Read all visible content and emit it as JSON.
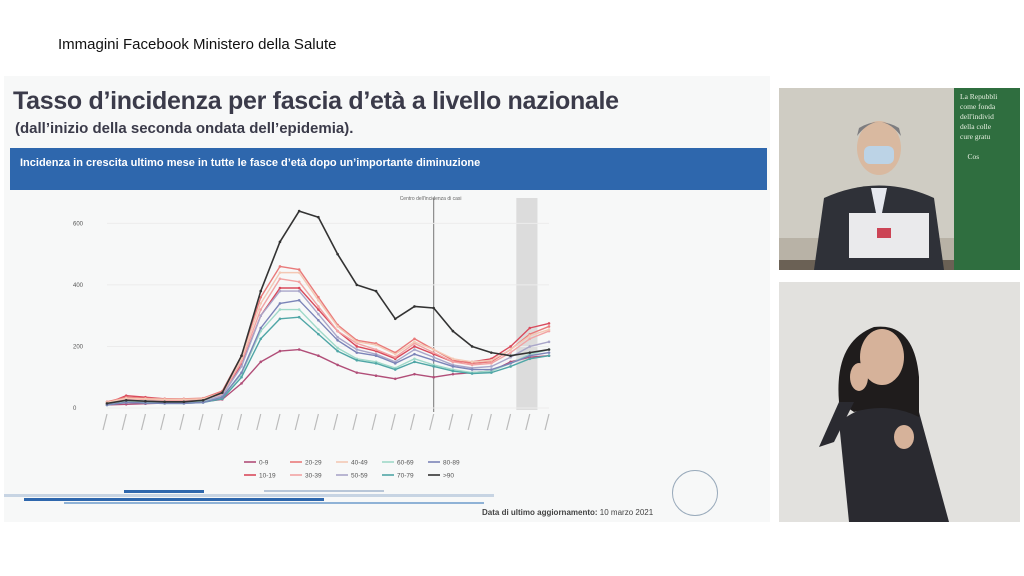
{
  "caption": "Immagini Facebook Ministero della Salute",
  "slide": {
    "title": "Tasso d’incidenza per fascia d’età a livello nazionale",
    "subtitle": "(dall’inizio della seconda ondata dell’epidemia).",
    "banner": "Incidenza in crescita ultimo mese in tutte le fasce d’età dopo un’importante diminuzione",
    "footer_label": "Data di ultimo aggiornamento:",
    "footer_date": "10 marzo 2021",
    "center_label": "Centro dell'incidenza di casi",
    "green_panel_text": "La Repubbli\ncome fonda\ndell'individ\ndella colle\ncure gratu\n\n    Cos"
  },
  "chart_data": {
    "type": "line",
    "x_count": 24,
    "vertical_marker_index": 17,
    "shaded_range": [
      21,
      23
    ],
    "ylim": [
      0,
      650
    ],
    "y_ticks": [
      0,
      200,
      400,
      600
    ],
    "series": [
      {
        "name": "0-9",
        "color": "#b14e78",
        "values": [
          10,
          12,
          14,
          16,
          18,
          20,
          28,
          80,
          150,
          185,
          190,
          170,
          140,
          115,
          105,
          95,
          110,
          100,
          110,
          115,
          120,
          150,
          165,
          170
        ]
      },
      {
        "name": "10-19",
        "color": "#d94a5c",
        "values": [
          15,
          40,
          35,
          30,
          28,
          30,
          50,
          140,
          300,
          390,
          390,
          320,
          250,
          200,
          185,
          160,
          200,
          175,
          150,
          150,
          160,
          200,
          260,
          275
        ]
      },
      {
        "name": "20-29",
        "color": "#e97a7a",
        "values": [
          20,
          35,
          32,
          30,
          30,
          32,
          55,
          170,
          360,
          460,
          450,
          360,
          270,
          220,
          210,
          180,
          225,
          190,
          155,
          145,
          150,
          190,
          240,
          265
        ]
      },
      {
        "name": "30-39",
        "color": "#f2a3a3",
        "values": [
          15,
          30,
          28,
          25,
          25,
          28,
          45,
          150,
          320,
          420,
          410,
          330,
          250,
          210,
          190,
          165,
          210,
          180,
          150,
          140,
          145,
          180,
          225,
          250
        ]
      },
      {
        "name": "40-49",
        "color": "#f4c8b4",
        "values": [
          18,
          32,
          30,
          28,
          28,
          30,
          50,
          160,
          340,
          440,
          440,
          350,
          265,
          215,
          205,
          175,
          215,
          190,
          160,
          150,
          155,
          190,
          235,
          255
        ]
      },
      {
        "name": "50-59",
        "color": "#a9a6c9",
        "values": [
          12,
          25,
          22,
          20,
          20,
          22,
          40,
          135,
          300,
          380,
          380,
          305,
          230,
          190,
          175,
          150,
          190,
          165,
          140,
          130,
          135,
          165,
          200,
          215
        ]
      },
      {
        "name": "60-69",
        "color": "#9fd9c9",
        "values": [
          10,
          20,
          18,
          17,
          17,
          20,
          35,
          110,
          250,
          320,
          320,
          255,
          195,
          160,
          150,
          130,
          160,
          140,
          125,
          115,
          120,
          145,
          175,
          190
        ]
      },
      {
        "name": "70-79",
        "color": "#4fa6a6",
        "values": [
          10,
          18,
          16,
          15,
          15,
          18,
          30,
          100,
          225,
          290,
          295,
          240,
          185,
          155,
          145,
          125,
          150,
          135,
          120,
          112,
          115,
          135,
          160,
          170
        ]
      },
      {
        "name": "80-89",
        "color": "#7b84b8",
        "values": [
          10,
          18,
          16,
          15,
          15,
          18,
          35,
          115,
          260,
          340,
          350,
          285,
          220,
          180,
          170,
          145,
          175,
          155,
          135,
          125,
          125,
          145,
          170,
          180
        ]
      },
      {
        "name": ">90",
        "color": "#333333",
        "values": [
          15,
          25,
          22,
          20,
          20,
          25,
          50,
          170,
          380,
          540,
          640,
          620,
          500,
          400,
          380,
          290,
          330,
          325,
          250,
          200,
          180,
          170,
          180,
          190
        ]
      }
    ]
  }
}
